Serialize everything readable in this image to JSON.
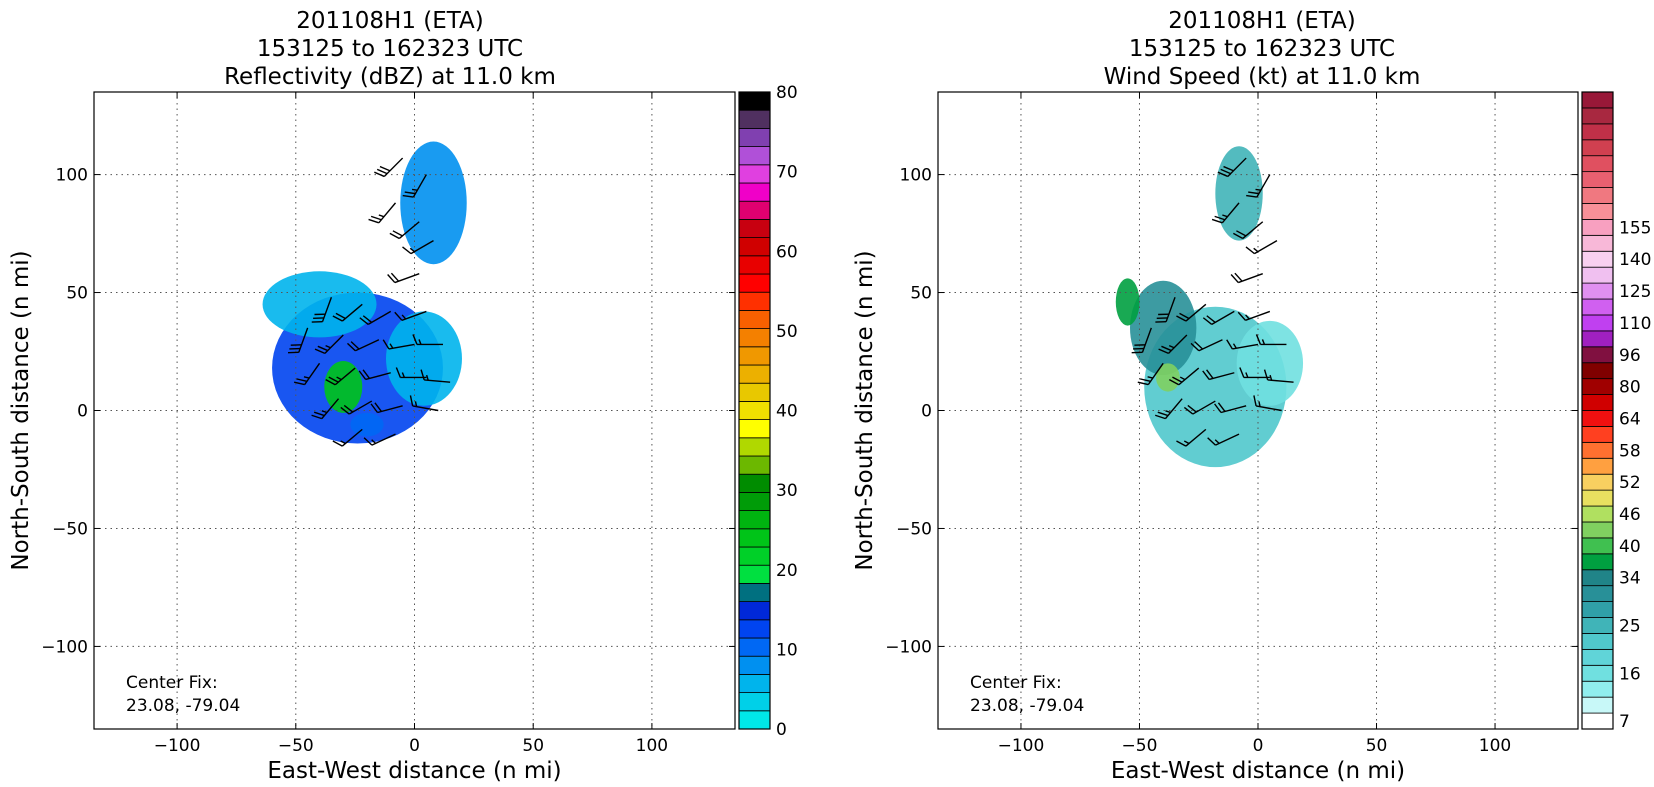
{
  "figure": {
    "panels": [
      {
        "title_lines": [
          "201108H1 (ETA)",
          "153125 to 162323 UTC",
          "Reflectivity (dBZ) at 11.0 km"
        ],
        "xlabel": "East-West distance (n mi)",
        "ylabel": "North-South distance (n mi)",
        "annotation_lines": [
          "Center Fix:",
          "23.08, -79.04"
        ]
      },
      {
        "title_lines": [
          "201108H1 (ETA)",
          "153125 to 162323 UTC",
          "Wind Speed (kt) at 11.0 km"
        ],
        "xlabel": "East-West distance (n mi)",
        "ylabel": "North-South distance (n mi)",
        "annotation_lines": [
          "Center Fix:",
          "23.08, -79.04"
        ]
      }
    ]
  },
  "chart_data": [
    {
      "type": "heatmap",
      "title": "201108H1 (ETA) 153125 to 162323 UTC Reflectivity (dBZ) at 11.0 km",
      "xlabel": "East-West distance (n mi)",
      "ylabel": "North-South distance (n mi)",
      "xlim": [
        -135,
        135
      ],
      "ylim": [
        -135,
        135
      ],
      "x_ticks": [
        -100,
        -50,
        0,
        50,
        100
      ],
      "y_ticks": [
        -100,
        -50,
        0,
        50,
        100
      ],
      "x_tick_labels": [
        "−100",
        "−50",
        "0",
        "50",
        "100"
      ],
      "y_tick_labels": [
        "−100",
        "−50",
        "0",
        "50",
        "100"
      ],
      "grid": true,
      "colorbar": {
        "min": 0,
        "max": 80,
        "ticks": [
          0,
          10,
          20,
          30,
          40,
          50,
          60,
          70,
          80
        ],
        "colors": [
          "#00e8e8",
          "#00d0e8",
          "#00b4ec",
          "#0090f0",
          "#0068f4",
          "#0044f0",
          "#0028d8",
          "#007080",
          "#00e040",
          "#00d028",
          "#00c418",
          "#00b410",
          "#009c08",
          "#008c00",
          "#6cb800",
          "#b0d800",
          "#ffff00",
          "#f0e000",
          "#e8c800",
          "#ecb000",
          "#f09800",
          "#f48000",
          "#f86000",
          "#ff3000",
          "#ff0000",
          "#e80000",
          "#d00000",
          "#c80010",
          "#e00070",
          "#f000c8",
          "#e040e0",
          "#b050d8",
          "#8040b0",
          "#503060",
          "#000000"
        ]
      },
      "field_blobs": [
        {
          "x": -24,
          "y": 18,
          "rx": 36,
          "ry": 32,
          "value": 12
        },
        {
          "x": -40,
          "y": 45,
          "rx": 24,
          "ry": 14,
          "value": 6
        },
        {
          "x": 4,
          "y": 22,
          "rx": 16,
          "ry": 20,
          "value": 5
        },
        {
          "x": 8,
          "y": 88,
          "rx": 14,
          "ry": 26,
          "value": 7
        },
        {
          "x": -30,
          "y": 10,
          "rx": 8,
          "ry": 11,
          "value": 24
        },
        {
          "x": -20,
          "y": -6,
          "rx": 7,
          "ry": 5,
          "value": 11
        }
      ],
      "barbs": [
        {
          "x": -5,
          "y": 107,
          "spd": 30,
          "dir": 225
        },
        {
          "x": 5,
          "y": 100,
          "spd": 25,
          "dir": 210
        },
        {
          "x": -8,
          "y": 88,
          "spd": 25,
          "dir": 220
        },
        {
          "x": 2,
          "y": 80,
          "spd": 20,
          "dir": 230
        },
        {
          "x": 8,
          "y": 72,
          "spd": 15,
          "dir": 240
        },
        {
          "x": 2,
          "y": 58,
          "spd": 20,
          "dir": 250
        },
        {
          "x": -35,
          "y": 48,
          "spd": 30,
          "dir": 200
        },
        {
          "x": -22,
          "y": 45,
          "spd": 20,
          "dir": 230
        },
        {
          "x": -10,
          "y": 42,
          "spd": 20,
          "dir": 240
        },
        {
          "x": 5,
          "y": 42,
          "spd": 15,
          "dir": 250
        },
        {
          "x": -45,
          "y": 35,
          "spd": 30,
          "dir": 200
        },
        {
          "x": -30,
          "y": 32,
          "spd": 25,
          "dir": 225
        },
        {
          "x": -15,
          "y": 30,
          "spd": 20,
          "dir": 245
        },
        {
          "x": 0,
          "y": 28,
          "spd": 15,
          "dir": 260
        },
        {
          "x": 12,
          "y": 28,
          "spd": 15,
          "dir": 270
        },
        {
          "x": -40,
          "y": 20,
          "spd": 25,
          "dir": 215
        },
        {
          "x": -25,
          "y": 18,
          "spd": 25,
          "dir": 230
        },
        {
          "x": -10,
          "y": 16,
          "spd": 20,
          "dir": 255
        },
        {
          "x": 5,
          "y": 14,
          "spd": 15,
          "dir": 270
        },
        {
          "x": 15,
          "y": 12,
          "spd": 15,
          "dir": 275
        },
        {
          "x": -32,
          "y": 5,
          "spd": 25,
          "dir": 220
        },
        {
          "x": -18,
          "y": 4,
          "spd": 20,
          "dir": 240
        },
        {
          "x": -5,
          "y": 2,
          "spd": 20,
          "dir": 255
        },
        {
          "x": 10,
          "y": 0,
          "spd": 15,
          "dir": 280
        },
        {
          "x": -22,
          "y": -8,
          "spd": 15,
          "dir": 230
        },
        {
          "x": -8,
          "y": -10,
          "spd": 15,
          "dir": 245
        }
      ]
    },
    {
      "type": "heatmap",
      "title": "201108H1 (ETA) 153125 to 162323 UTC Wind Speed (kt) at 11.0 km",
      "xlabel": "East-West distance (n mi)",
      "ylabel": "North-South distance (n mi)",
      "xlim": [
        -135,
        135
      ],
      "ylim": [
        -135,
        135
      ],
      "x_ticks": [
        -100,
        -50,
        0,
        50,
        100
      ],
      "y_ticks": [
        -100,
        -50,
        0,
        50,
        100
      ],
      "x_tick_labels": [
        "−100",
        "−50",
        "0",
        "50",
        "100"
      ],
      "y_tick_labels": [
        "−100",
        "−50",
        "0",
        "50",
        "100"
      ],
      "grid": true,
      "colorbar": {
        "tick_labels": [
          "7",
          "16",
          "25",
          "34",
          "40",
          "46",
          "52",
          "58",
          "64",
          "80",
          "96",
          "110",
          "125",
          "140",
          "155"
        ],
        "tick_index": [
          0,
          3,
          6,
          9,
          11,
          13,
          15,
          17,
          19,
          21,
          23,
          25,
          27,
          29,
          31
        ],
        "colors": [
          "#ffffff",
          "#c8f8f8",
          "#90eeee",
          "#70e0e0",
          "#60d4d8",
          "#50c8cc",
          "#40b4b8",
          "#30a0a8",
          "#289098",
          "#208488",
          "#00a040",
          "#40c050",
          "#80d060",
          "#b0e060",
          "#e8e060",
          "#f8d060",
          "#ffa040",
          "#ff7030",
          "#ff4020",
          "#f01010",
          "#d00000",
          "#a00000",
          "#800000",
          "#801040",
          "#a020c0",
          "#c040f0",
          "#d060f0",
          "#e090f0",
          "#f0c0f0",
          "#f8d0f0",
          "#f8b8d8",
          "#f8a0c0",
          "#f89098",
          "#f07880",
          "#e86070",
          "#e05060",
          "#d04050",
          "#c03048",
          "#a82840",
          "#981838"
        ]
      },
      "field_blobs": [
        {
          "x": -18,
          "y": 10,
          "rx": 30,
          "ry": 34,
          "value": 5
        },
        {
          "x": -40,
          "y": 35,
          "rx": 14,
          "ry": 20,
          "value": 8
        },
        {
          "x": 5,
          "y": 20,
          "rx": 14,
          "ry": 18,
          "value": 3
        },
        {
          "x": -8,
          "y": 92,
          "rx": 10,
          "ry": 20,
          "value": 6
        },
        {
          "x": -55,
          "y": 46,
          "rx": 5,
          "ry": 10,
          "value": 10
        },
        {
          "x": -38,
          "y": 14,
          "rx": 5,
          "ry": 6,
          "value": 12
        }
      ],
      "barbs": [
        {
          "x": -5,
          "y": 107,
          "spd": 30,
          "dir": 225
        },
        {
          "x": 5,
          "y": 100,
          "spd": 25,
          "dir": 210
        },
        {
          "x": -8,
          "y": 88,
          "spd": 25,
          "dir": 220
        },
        {
          "x": 2,
          "y": 80,
          "spd": 20,
          "dir": 230
        },
        {
          "x": 8,
          "y": 72,
          "spd": 15,
          "dir": 240
        },
        {
          "x": 2,
          "y": 58,
          "spd": 20,
          "dir": 250
        },
        {
          "x": -35,
          "y": 48,
          "spd": 30,
          "dir": 200
        },
        {
          "x": -22,
          "y": 45,
          "spd": 20,
          "dir": 230
        },
        {
          "x": -10,
          "y": 42,
          "spd": 20,
          "dir": 240
        },
        {
          "x": 5,
          "y": 42,
          "spd": 15,
          "dir": 250
        },
        {
          "x": -45,
          "y": 35,
          "spd": 30,
          "dir": 200
        },
        {
          "x": -30,
          "y": 32,
          "spd": 25,
          "dir": 225
        },
        {
          "x": -15,
          "y": 30,
          "spd": 20,
          "dir": 245
        },
        {
          "x": 0,
          "y": 28,
          "spd": 15,
          "dir": 260
        },
        {
          "x": 12,
          "y": 28,
          "spd": 15,
          "dir": 270
        },
        {
          "x": -40,
          "y": 20,
          "spd": 25,
          "dir": 215
        },
        {
          "x": -25,
          "y": 18,
          "spd": 25,
          "dir": 230
        },
        {
          "x": -10,
          "y": 16,
          "spd": 20,
          "dir": 255
        },
        {
          "x": 5,
          "y": 14,
          "spd": 15,
          "dir": 270
        },
        {
          "x": 15,
          "y": 12,
          "spd": 15,
          "dir": 275
        },
        {
          "x": -32,
          "y": 5,
          "spd": 25,
          "dir": 220
        },
        {
          "x": -18,
          "y": 4,
          "spd": 20,
          "dir": 240
        },
        {
          "x": -5,
          "y": 2,
          "spd": 20,
          "dir": 255
        },
        {
          "x": 10,
          "y": 0,
          "spd": 15,
          "dir": 280
        },
        {
          "x": -22,
          "y": -8,
          "spd": 15,
          "dir": 230
        },
        {
          "x": -8,
          "y": -10,
          "spd": 15,
          "dir": 245
        }
      ]
    }
  ]
}
